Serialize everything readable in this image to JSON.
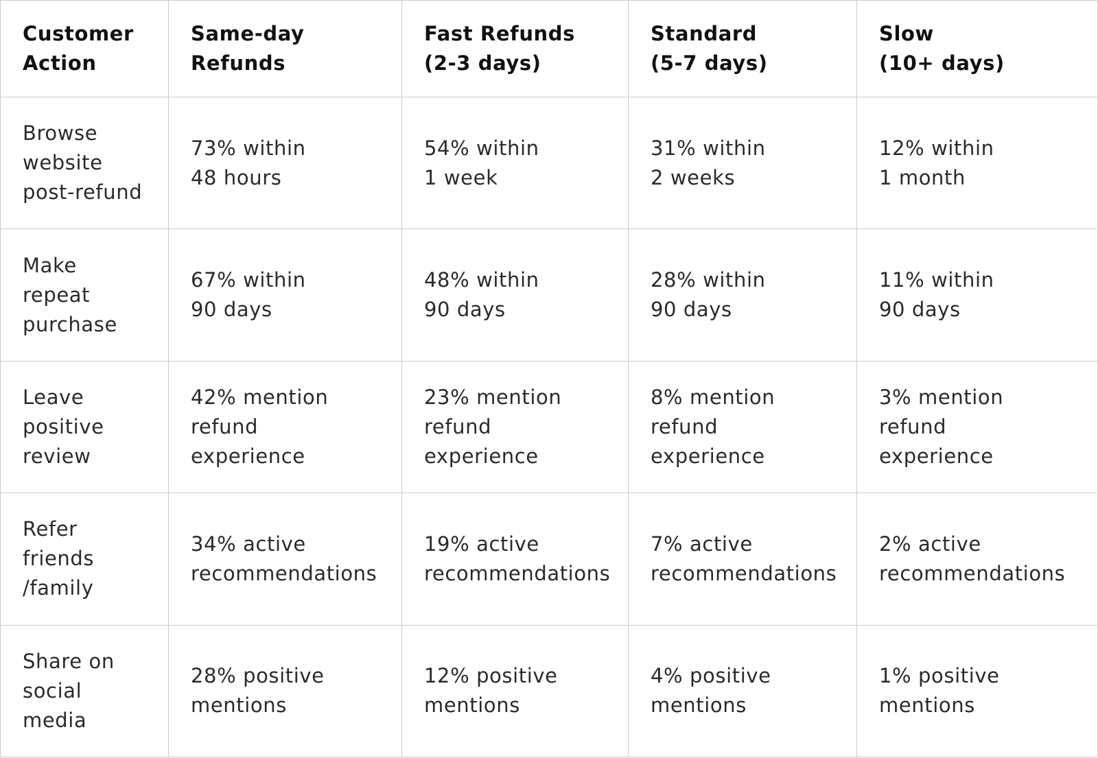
{
  "table": {
    "headers": [
      "Customer\nAction",
      "Same-day\nRefunds",
      "Fast Refunds\n(2-3 days)",
      "Standard\n(5-7 days)",
      "Slow\n(10+ days)"
    ],
    "rows": [
      {
        "action": "Browse\nwebsite\npost-refund",
        "cells": [
          "73% within\n48 hours",
          "54% within\n1 week",
          "31% within\n2 weeks",
          "12% within\n1 month"
        ]
      },
      {
        "action": "Make\nrepeat\npurchase",
        "cells": [
          "67% within\n90 days",
          "48% within\n90 days",
          "28% within\n90 days",
          "11% within\n90 days"
        ]
      },
      {
        "action": "Leave\npositive\nreview",
        "cells": [
          "42% mention\nrefund\nexperience",
          "23% mention\nrefund\nexperience",
          "8% mention\nrefund\nexperience",
          "3% mention\nrefund\nexperience"
        ]
      },
      {
        "action": "Refer\nfriends\n/family",
        "cells": [
          "34% active\nrecommendations",
          "19% active\nrecommendations",
          "7% active\nrecommendations",
          "2% active\nrecommendations"
        ]
      },
      {
        "action": "Share on\nsocial\nmedia",
        "cells": [
          "28% positive\nmentions",
          "12% positive\nmentions",
          "4% positive\nmentions",
          "1% positive\nmentions"
        ]
      }
    ]
  },
  "colors": {
    "border": "#c9c9c9",
    "text": "#2a2a2a",
    "header_text": "#111111",
    "background": "#ffffff"
  }
}
